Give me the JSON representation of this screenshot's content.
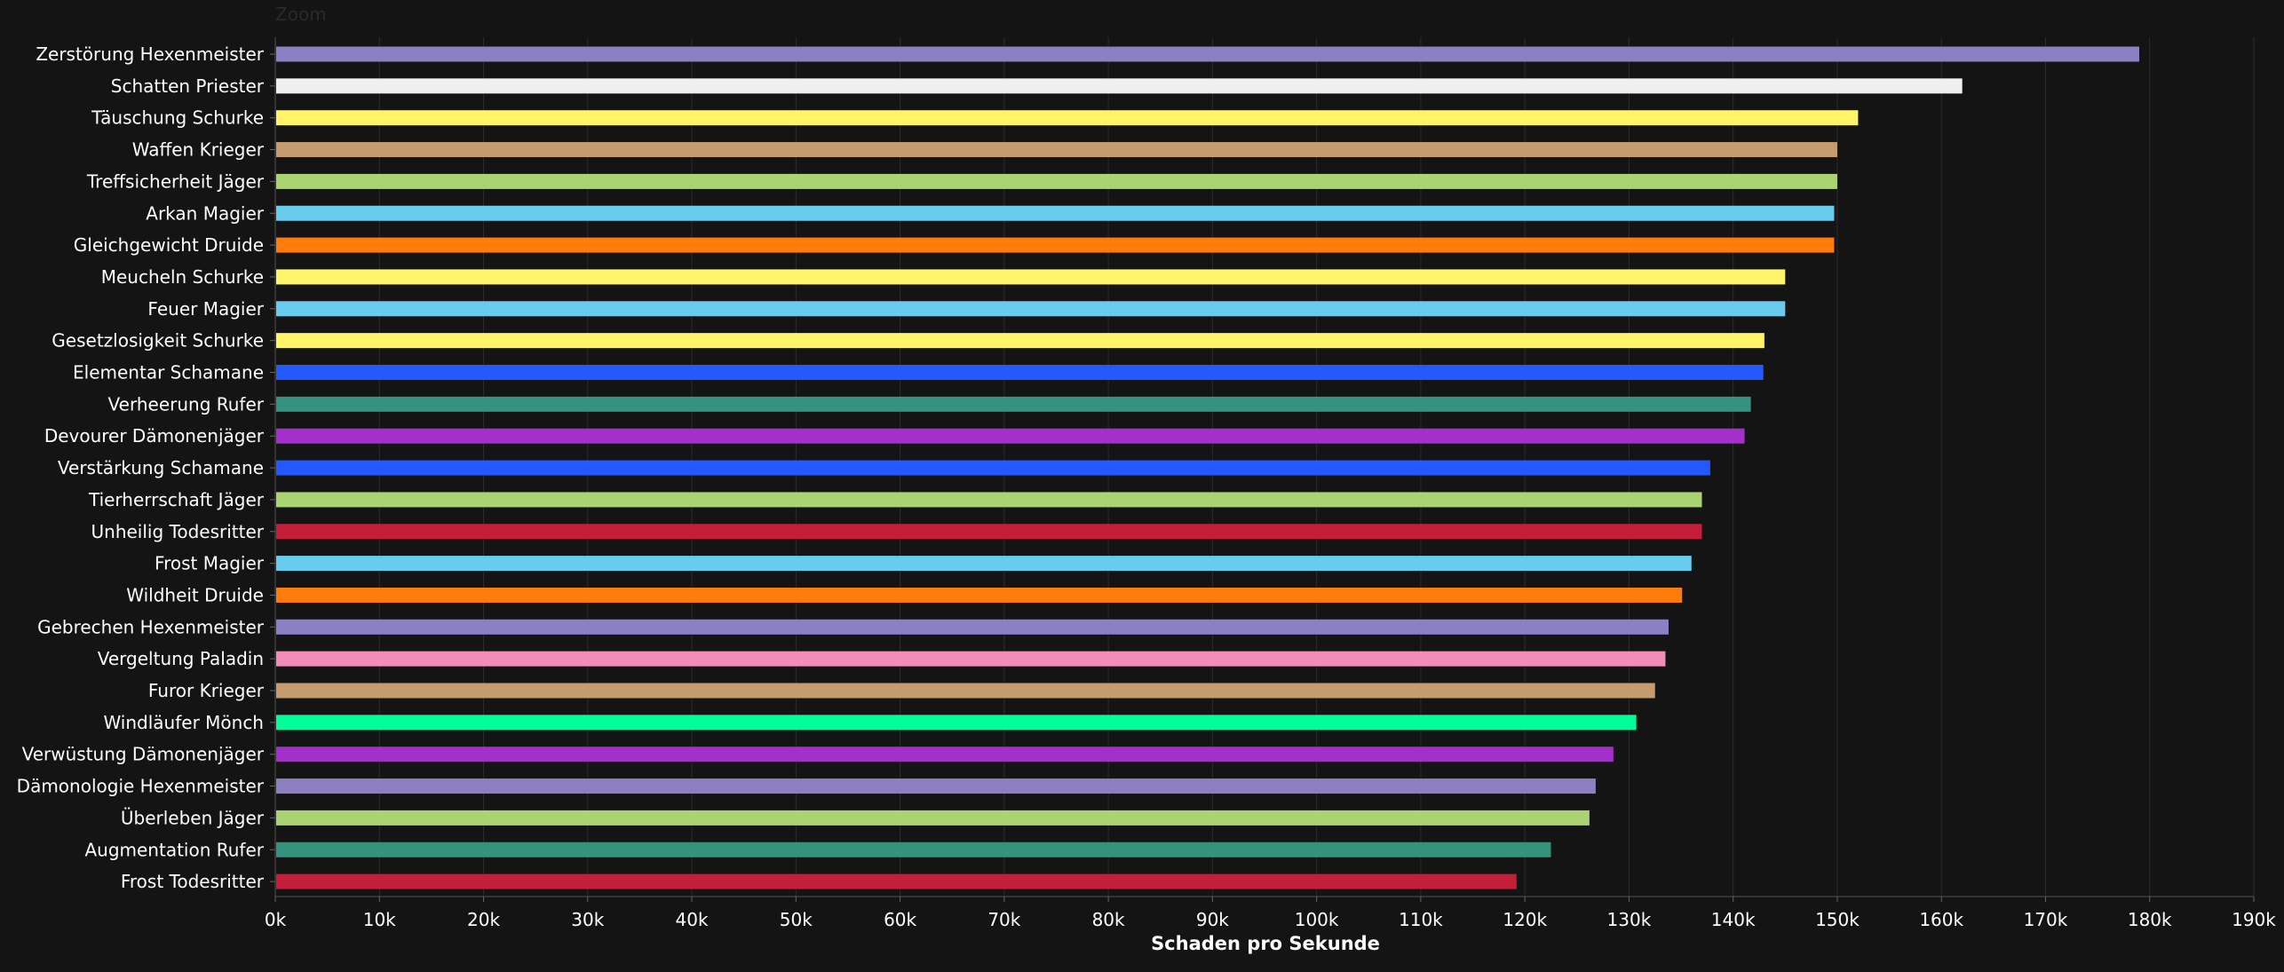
{
  "zoom_label": "Zoom",
  "chart_data": {
    "type": "bar",
    "orientation": "horizontal",
    "title": "",
    "xlabel": "Schaden pro Sekunde",
    "ylabel": "",
    "xlim": [
      0,
      190000
    ],
    "xticks": [
      0,
      10000,
      20000,
      30000,
      40000,
      50000,
      60000,
      70000,
      80000,
      90000,
      100000,
      110000,
      120000,
      130000,
      140000,
      150000,
      160000,
      170000,
      180000,
      190000
    ],
    "xtick_labels": [
      "0k",
      "10k",
      "20k",
      "30k",
      "40k",
      "50k",
      "60k",
      "70k",
      "80k",
      "90k",
      "100k",
      "110k",
      "120k",
      "130k",
      "140k",
      "150k",
      "160k",
      "170k",
      "180k",
      "190k"
    ],
    "grid": true,
    "legend": "none",
    "bars": [
      {
        "label": "Zerstörung Hexenmeister",
        "value": 179000,
        "color": "#8c7fc2"
      },
      {
        "label": "Schatten Priester",
        "value": 162000,
        "color": "#efefef"
      },
      {
        "label": "Täuschung Schurke",
        "value": 152000,
        "color": "#fff468"
      },
      {
        "label": "Waffen Krieger",
        "value": 150000,
        "color": "#c69b6d"
      },
      {
        "label": "Treffsicherheit Jäger",
        "value": 150000,
        "color": "#aad372"
      },
      {
        "label": "Arkan Magier",
        "value": 149700,
        "color": "#68ccef"
      },
      {
        "label": "Gleichgewicht Druide",
        "value": 149700,
        "color": "#ff7c0a"
      },
      {
        "label": "Meucheln Schurke",
        "value": 145000,
        "color": "#fff468"
      },
      {
        "label": "Feuer Magier",
        "value": 145000,
        "color": "#68ccef"
      },
      {
        "label": "Gesetzlosigkeit Schurke",
        "value": 143000,
        "color": "#fff468"
      },
      {
        "label": "Elementar Schamane",
        "value": 142900,
        "color": "#2359ff"
      },
      {
        "label": "Verheerung Rufer",
        "value": 141700,
        "color": "#33937f"
      },
      {
        "label": "Devourer Dämonenjäger",
        "value": 141100,
        "color": "#a330c9"
      },
      {
        "label": "Verstärkung Schamane",
        "value": 137800,
        "color": "#2359ff"
      },
      {
        "label": "Tierherrschaft Jäger",
        "value": 137000,
        "color": "#aad372"
      },
      {
        "label": "Unheilig Todesritter",
        "value": 137000,
        "color": "#c41e3b"
      },
      {
        "label": "Frost Magier",
        "value": 136000,
        "color": "#68ccef"
      },
      {
        "label": "Wildheit Druide",
        "value": 135100,
        "color": "#ff7c0a"
      },
      {
        "label": "Gebrechen Hexenmeister",
        "value": 133800,
        "color": "#8c7fc2"
      },
      {
        "label": "Vergeltung Paladin",
        "value": 133500,
        "color": "#f48cba"
      },
      {
        "label": "Furor Krieger",
        "value": 132500,
        "color": "#c69b6d"
      },
      {
        "label": "Windläufer Mönch",
        "value": 130700,
        "color": "#00ff98"
      },
      {
        "label": "Verwüstung Dämonenjäger",
        "value": 128500,
        "color": "#a330c9"
      },
      {
        "label": "Dämonologie Hexenmeister",
        "value": 126800,
        "color": "#8c7fc2"
      },
      {
        "label": "Überleben Jäger",
        "value": 126200,
        "color": "#aad372"
      },
      {
        "label": "Augmentation Rufer",
        "value": 122500,
        "color": "#33937f"
      },
      {
        "label": "Frost Todesritter",
        "value": 119200,
        "color": "#c41e3b"
      }
    ]
  }
}
